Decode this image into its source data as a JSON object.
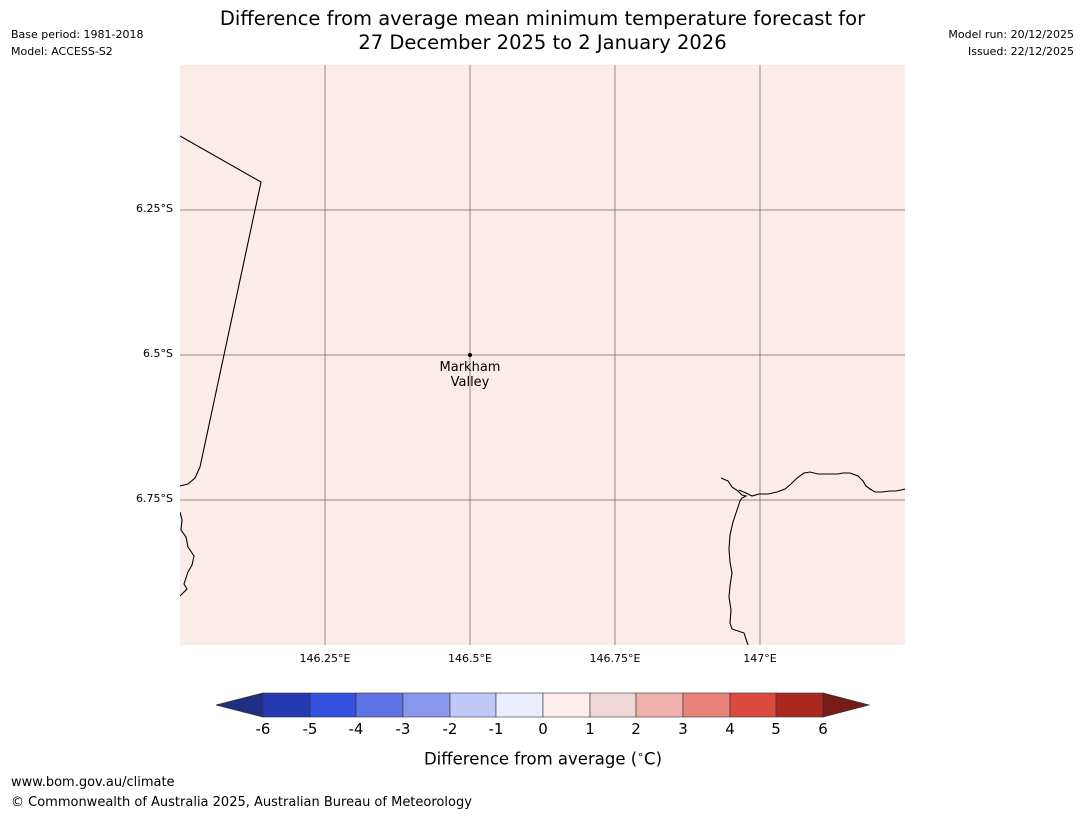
{
  "meta": {
    "base_period": "Base period: 1981-2018",
    "model": "Model: ACCESS-S2",
    "model_run": "Model run: 20/12/2025",
    "issued": "Issued: 22/12/2025"
  },
  "title": {
    "line1": "Difference from average mean minimum temperature forecast for",
    "line2": "27 December 2025 to 2 January 2026"
  },
  "map": {
    "fill_color": "#fbecea",
    "fill_value_range": [
      0,
      1
    ],
    "lon_range": [
      146.0,
      147.25
    ],
    "lat_range": [
      -6.0,
      -7.0
    ],
    "y_ticks": [
      "6.25°S",
      "6.5°S",
      "6.75°S"
    ],
    "x_ticks": [
      "146.25°E",
      "146.5°E",
      "146.75°E",
      "147°E"
    ],
    "place": {
      "name_line1": "Markham",
      "name_line2": "Valley",
      "lon": 146.5,
      "lat": -6.5
    }
  },
  "colorbar": {
    "ticks": [
      "-6",
      "-5",
      "-4",
      "-3",
      "-2",
      "-1",
      "0",
      "1",
      "2",
      "3",
      "4",
      "5",
      "6"
    ],
    "colors": [
      "#1f2e85",
      "#253ab2",
      "#3350df",
      "#5c72e5",
      "#8898ec",
      "#c0c8f6",
      "#eaedfc",
      "#fdeeec",
      "#efd8d5",
      "#f0b0ab",
      "#e8827a",
      "#dc4a3e",
      "#aa2820",
      "#761b15"
    ],
    "label": "Difference from average (",
    "unit_symbol": "∘",
    "unit_letter": "C)"
  },
  "footer": {
    "url": "www.bom.gov.au/climate",
    "copyright": "© Commonwealth of Australia 2025, Australian Bureau of Meteorology"
  }
}
